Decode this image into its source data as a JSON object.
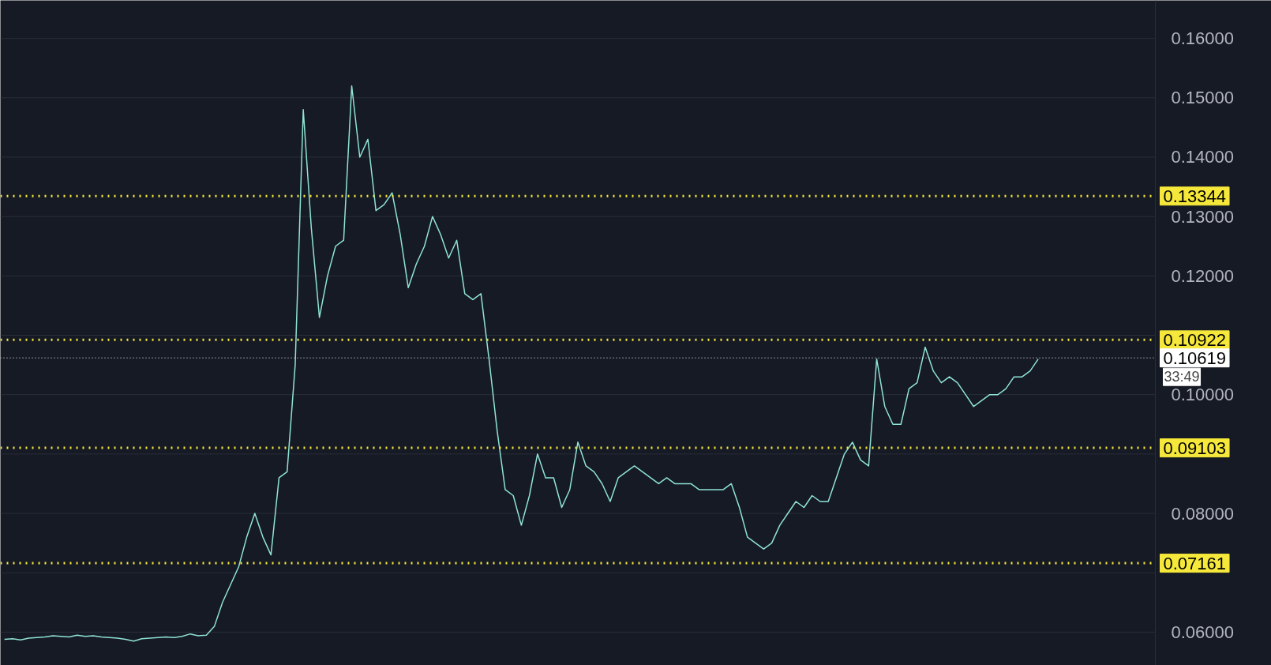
{
  "chart_data": {
    "type": "line",
    "categories": [
      null,
      null,
      null,
      null,
      null,
      null,
      null,
      null,
      null,
      null,
      null,
      null,
      null,
      null,
      null,
      null,
      null,
      null,
      null,
      null,
      null,
      null,
      null,
      null,
      null,
      null,
      null,
      null,
      null,
      null,
      null,
      null,
      null,
      null,
      null,
      null,
      null,
      null,
      null,
      null,
      null,
      null,
      null,
      null,
      null,
      null,
      null,
      null,
      null,
      null,
      null,
      null,
      null,
      null,
      null,
      null,
      null,
      null,
      null,
      null,
      null,
      null,
      null,
      null,
      null,
      null,
      null,
      null,
      null,
      null,
      null,
      null,
      null,
      null,
      null,
      null,
      null,
      null,
      null,
      null,
      null,
      null,
      null,
      null,
      null,
      null,
      null,
      null,
      null,
      null,
      null,
      null,
      null,
      null,
      null,
      null,
      null,
      null,
      null,
      null,
      null,
      null,
      null,
      null,
      null,
      null,
      null,
      null,
      null,
      null,
      null,
      null,
      null,
      null,
      null,
      null,
      null,
      null,
      null,
      null,
      null,
      null,
      null,
      null,
      null,
      null,
      null,
      null,
      null,
      null,
      null,
      null,
      null,
      null,
      null,
      null,
      null,
      null,
      null,
      null,
      null,
      null,
      null
    ],
    "series": [
      {
        "color": "#8fe3d6",
        "values": [
          0.0588,
          0.0589,
          0.0587,
          0.059,
          0.0591,
          0.0592,
          0.0594,
          0.0593,
          0.0592,
          0.0595,
          0.0593,
          0.0594,
          0.0592,
          0.0591,
          0.059,
          0.0588,
          0.0585,
          0.0589,
          0.059,
          0.0591,
          0.0592,
          0.0591,
          0.0593,
          0.0597,
          0.0594,
          0.0595,
          0.061,
          0.065,
          0.068,
          0.071,
          0.076,
          0.08,
          0.076,
          0.073,
          0.086,
          0.087,
          0.105,
          0.148,
          0.128,
          0.113,
          0.12,
          0.125,
          0.126,
          0.152,
          0.14,
          0.143,
          0.131,
          0.132,
          0.134,
          0.127,
          0.118,
          0.122,
          0.125,
          0.13,
          0.127,
          0.123,
          0.126,
          0.117,
          0.116,
          0.117,
          0.106,
          0.094,
          0.084,
          0.083,
          0.078,
          0.083,
          0.09,
          0.086,
          0.086,
          0.081,
          0.084,
          0.092,
          0.088,
          0.087,
          0.085,
          0.082,
          0.086,
          0.087,
          0.088,
          0.087,
          0.086,
          0.085,
          0.086,
          0.085,
          0.085,
          0.085,
          0.084,
          0.084,
          0.084,
          0.084,
          0.085,
          0.081,
          0.076,
          0.075,
          0.074,
          0.075,
          0.078,
          0.08,
          0.082,
          0.081,
          0.083,
          0.082,
          0.082,
          0.086,
          0.09,
          0.092,
          0.089,
          0.088,
          0.106,
          0.098,
          0.095,
          0.095,
          0.101,
          0.102,
          0.108,
          0.104,
          0.102,
          0.103,
          0.102,
          0.1,
          0.098,
          0.099,
          0.1,
          0.1,
          0.101,
          0.103,
          0.103,
          0.104,
          0.106,
          null,
          null,
          null,
          null,
          null,
          null,
          null,
          null,
          null,
          null,
          null,
          null,
          null,
          null
        ]
      }
    ],
    "ylim": [
      0.0544,
      0.1664
    ],
    "yticks": [
      {
        "value": 0.06,
        "label": "0.06000"
      },
      {
        "value": 0.07,
        "label": null
      },
      {
        "value": 0.08,
        "label": "0.08000"
      },
      {
        "value": 0.09,
        "label": null
      },
      {
        "value": 0.1,
        "label": "0.10000"
      },
      {
        "value": 0.11,
        "label": null
      },
      {
        "value": 0.12,
        "label": "0.12000"
      },
      {
        "value": 0.13,
        "label": "0.13000"
      },
      {
        "value": 0.14,
        "label": "0.14000"
      },
      {
        "value": 0.15,
        "label": "0.15000"
      },
      {
        "value": 0.16,
        "label": "0.16000"
      }
    ],
    "grid": "y",
    "line_style": "solid",
    "ref_lines": [
      {
        "axis": "y",
        "value": 0.13344,
        "label": "0.13344",
        "color": "#f5e83a",
        "line_style": "dotted"
      },
      {
        "axis": "y",
        "value": 0.10922,
        "label": "0.10922",
        "color": "#f5e83a",
        "line_style": "dotted"
      },
      {
        "axis": "y",
        "value": 0.09103,
        "label": "0.09103",
        "color": "#f5e83a",
        "line_style": "dotted"
      },
      {
        "axis": "y",
        "value": 0.07161,
        "label": "0.07161",
        "color": "#f5e83a",
        "line_style": "dotted"
      },
      {
        "axis": "y",
        "value": 0.10619,
        "label": "0.10619",
        "color": "#ffffff",
        "line_style": "dotted"
      }
    ],
    "annotations": [
      "33:49"
    ]
  }
}
